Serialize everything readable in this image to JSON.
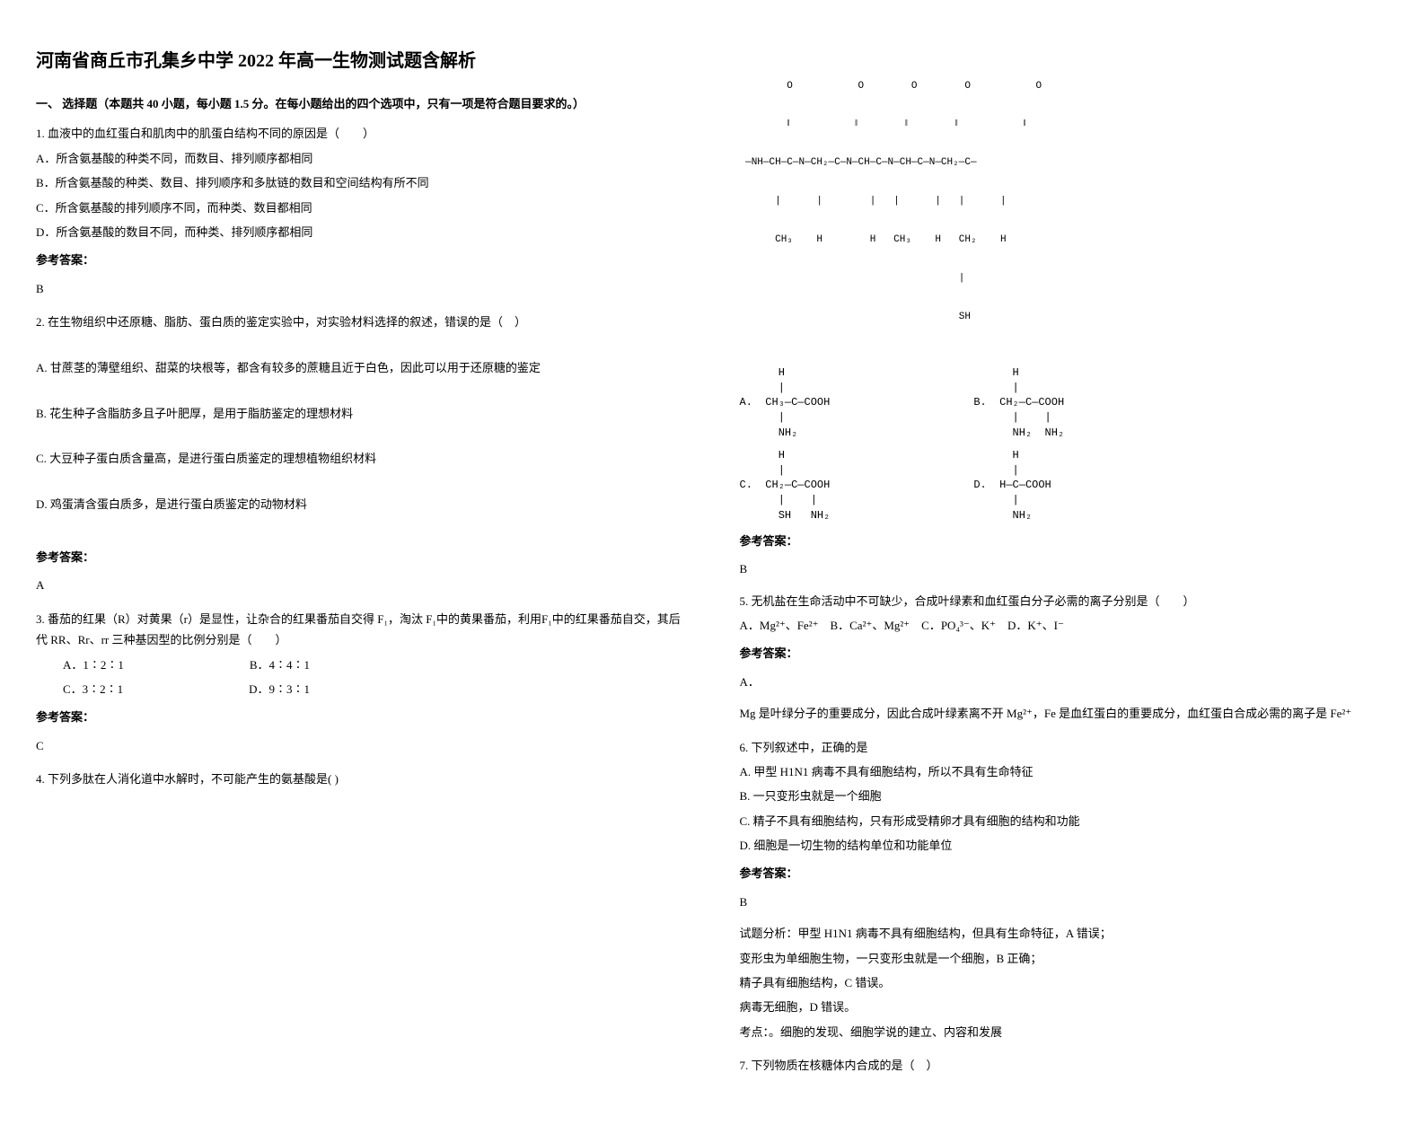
{
  "title": "河南省商丘市孔集乡中学 2022 年高一生物测试题含解析",
  "section_header": "一、 选择题（本题共 40 小题，每小题 1.5 分。在每小题给出的四个选项中，只有一项是符合题目要求的。）",
  "q1": {
    "text": "1. 血液中的血红蛋白和肌肉中的肌蛋白结构不同的原因是（　　）",
    "optA": "A．所含氨基酸的种类不同，而数目、排列顺序都相同",
    "optB": "B．所含氨基酸的种类、数目、排列顺序和多肽链的数目和空间结构有所不同",
    "optC": "C．所含氨基酸的排列顺序不同，而种类、数目都相同",
    "optD": "D．所含氨基酸的数目不同，而种类、排列顺序都相同",
    "answer_label": "参考答案：",
    "answer": "B"
  },
  "q2": {
    "text": "2. 在生物组织中还原糖、脂肪、蛋白质的鉴定实验中，对实验材料选择的叙述，错误的是（　）",
    "optA": "A. 甘蔗茎的薄壁组织、甜菜的块根等，都含有较多的蔗糖且近于白色，因此可以用于还原糖的鉴定",
    "optB": "B. 花生种子含脂肪多且子叶肥厚，是用于脂肪鉴定的理想材料",
    "optC": "C. 大豆种子蛋白质含量高，是进行蛋白质鉴定的理想植物组织材料",
    "optD": "D. 鸡蛋清含蛋白质多，是进行蛋白质鉴定的动物材料",
    "answer_label": "参考答案：",
    "answer": "A"
  },
  "q3": {
    "text": "3. 番茄的红果（R）对黄果（r）是显性，让杂合的红果番茄自交得 F₁，淘汰 F₁中的黄果番茄，利用F₁中的红果番茄自交，其后代 RR、Rr、rr 三种基因型的比例分别是（　　）",
    "optA": "A．1∶2∶1",
    "optB": "B．4∶4∶1",
    "optC": "C．3∶2∶1",
    "optD": "D．9∶3∶1",
    "answer_label": "参考答案：",
    "answer": "C"
  },
  "q4": {
    "text": "4. 下列多肽在人消化道中水解时，不可能产生的氨基酸是( )",
    "peptide_line1": "        O           O        O        O           O",
    "peptide_line2": "        ‖           ‖        ‖        ‖           ‖",
    "peptide_line3": " —NH—CH—C—N—CH₂—C—N—CH—C—N—CH—C—N—CH₂—C—",
    "peptide_line4": "      |      |        |   |      |   |      |",
    "peptide_line5": "      CH₃    H        H   CH₃    H   CH₂    H",
    "peptide_line6": "                                     |",
    "peptide_line7": "                                     SH",
    "aa_A": "      H\n      |\nA.  CH₃—C—COOH\n      |\n      NH₂",
    "aa_B": "      H\n      |\nB.  CH₂—C—COOH\n      |    |\n      NH₂  NH₂",
    "aa_C": "      H\n      |\nC.  CH₂—C—COOH\n      |    |\n      SH   NH₂",
    "aa_D": "      H\n      |\nD.  H—C—COOH\n      |\n      NH₂",
    "answer_label": "参考答案：",
    "answer": "B"
  },
  "q5": {
    "text": "5. 无机盐在生命活动中不可缺少，合成叶绿素和血红蛋白分子必需的离子分别是（　　）",
    "options": "A．Mg²⁺、Fe²⁺　B．Ca²⁺、Mg²⁺　C．PO₄³⁻、K⁺　D．K⁺、I⁻",
    "answer_label": "参考答案：",
    "answer": "A．",
    "analysis": "Mg 是叶绿分子的重要成分，因此合成叶绿素离不开 Mg²⁺，Fe 是血红蛋白的重要成分，血红蛋白合成必需的离子是 Fe²⁺"
  },
  "q6": {
    "text": "6. 下列叙述中，正确的是",
    "optA": "A.  甲型 H1N1 病毒不具有细胞结构，所以不具有生命特征",
    "optB": "B.  一只变形虫就是一个细胞",
    "optC": "C.  精子不具有细胞结构，只有形成受精卵才具有细胞的结构和功能",
    "optD": "D.  细胞是一切生物的结构单位和功能单位",
    "answer_label": "参考答案：",
    "answer": "B",
    "analysis1": "试题分析：甲型 H1N1 病毒不具有细胞结构，但具有生命特征，A 错误；",
    "analysis2": "变形虫为单细胞生物，一只变形虫就是一个细胞，B 正确；",
    "analysis3": "精子具有细胞结构，C 错误。",
    "analysis4": "病毒无细胞，D 错误。",
    "analysis5": "考点：。细胞的发现、细胞学说的建立、内容和发展"
  },
  "q7": {
    "text": "7. 下列物质在核糖体内合成的是（　）"
  }
}
